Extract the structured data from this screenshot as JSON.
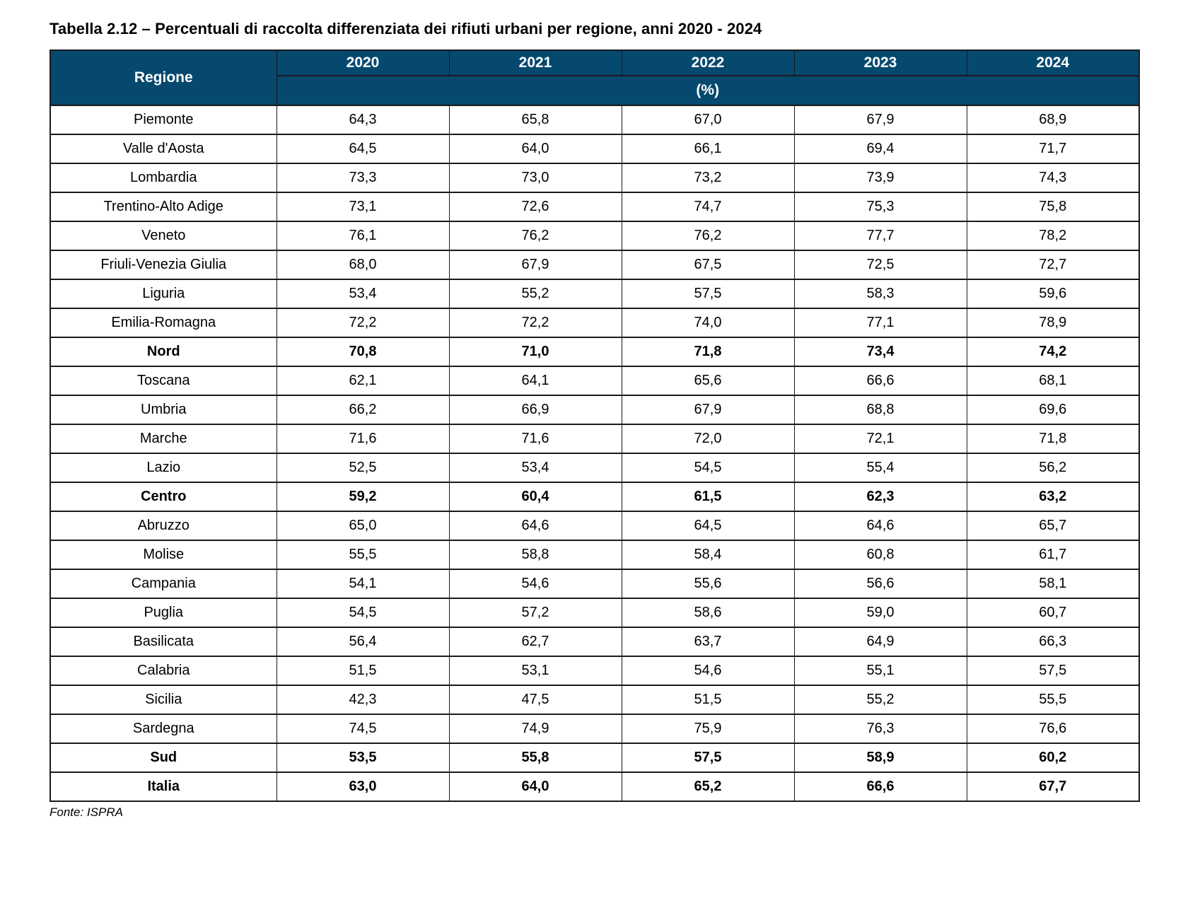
{
  "title": "Tabella 2.12 – Percentuali di raccolta differenziata dei rifiuti urbani per regione, anni 2020 - 2024",
  "source": "Fonte: ISPRA",
  "colors": {
    "header_background": "#05496F",
    "header_text": "#ffffff",
    "border": "#1a1a1a",
    "body_text": "#000000"
  },
  "table": {
    "region_header": "Regione",
    "year_headers": [
      "2020",
      "2021",
      "2022",
      "2023",
      "2024"
    ],
    "unit_header": "(%)",
    "rows": [
      {
        "region": "Piemonte",
        "bold": false,
        "values": [
          "64,3",
          "65,8",
          "67,0",
          "67,9",
          "68,9"
        ]
      },
      {
        "region": "Valle d'Aosta",
        "bold": false,
        "values": [
          "64,5",
          "64,0",
          "66,1",
          "69,4",
          "71,7"
        ]
      },
      {
        "region": "Lombardia",
        "bold": false,
        "values": [
          "73,3",
          "73,0",
          "73,2",
          "73,9",
          "74,3"
        ]
      },
      {
        "region": "Trentino-Alto Adige",
        "bold": false,
        "values": [
          "73,1",
          "72,6",
          "74,7",
          "75,3",
          "75,8"
        ]
      },
      {
        "region": "Veneto",
        "bold": false,
        "values": [
          "76,1",
          "76,2",
          "76,2",
          "77,7",
          "78,2"
        ]
      },
      {
        "region": "Friuli-Venezia Giulia",
        "bold": false,
        "values": [
          "68,0",
          "67,9",
          "67,5",
          "72,5",
          "72,7"
        ]
      },
      {
        "region": "Liguria",
        "bold": false,
        "values": [
          "53,4",
          "55,2",
          "57,5",
          "58,3",
          "59,6"
        ]
      },
      {
        "region": "Emilia-Romagna",
        "bold": false,
        "values": [
          "72,2",
          "72,2",
          "74,0",
          "77,1",
          "78,9"
        ]
      },
      {
        "region": "Nord",
        "bold": true,
        "values": [
          "70,8",
          "71,0",
          "71,8",
          "73,4",
          "74,2"
        ]
      },
      {
        "region": "Toscana",
        "bold": false,
        "values": [
          "62,1",
          "64,1",
          "65,6",
          "66,6",
          "68,1"
        ]
      },
      {
        "region": "Umbria",
        "bold": false,
        "values": [
          "66,2",
          "66,9",
          "67,9",
          "68,8",
          "69,6"
        ]
      },
      {
        "region": "Marche",
        "bold": false,
        "values": [
          "71,6",
          "71,6",
          "72,0",
          "72,1",
          "71,8"
        ]
      },
      {
        "region": "Lazio",
        "bold": false,
        "values": [
          "52,5",
          "53,4",
          "54,5",
          "55,4",
          "56,2"
        ]
      },
      {
        "region": "Centro",
        "bold": true,
        "values": [
          "59,2",
          "60,4",
          "61,5",
          "62,3",
          "63,2"
        ]
      },
      {
        "region": "Abruzzo",
        "bold": false,
        "values": [
          "65,0",
          "64,6",
          "64,5",
          "64,6",
          "65,7"
        ]
      },
      {
        "region": "Molise",
        "bold": false,
        "values": [
          "55,5",
          "58,8",
          "58,4",
          "60,8",
          "61,7"
        ]
      },
      {
        "region": "Campania",
        "bold": false,
        "values": [
          "54,1",
          "54,6",
          "55,6",
          "56,6",
          "58,1"
        ]
      },
      {
        "region": "Puglia",
        "bold": false,
        "values": [
          "54,5",
          "57,2",
          "58,6",
          "59,0",
          "60,7"
        ]
      },
      {
        "region": "Basilicata",
        "bold": false,
        "values": [
          "56,4",
          "62,7",
          "63,7",
          "64,9",
          "66,3"
        ]
      },
      {
        "region": "Calabria",
        "bold": false,
        "values": [
          "51,5",
          "53,1",
          "54,6",
          "55,1",
          "57,5"
        ]
      },
      {
        "region": "Sicilia",
        "bold": false,
        "values": [
          "42,3",
          "47,5",
          "51,5",
          "55,2",
          "55,5"
        ]
      },
      {
        "region": "Sardegna",
        "bold": false,
        "values": [
          "74,5",
          "74,9",
          "75,9",
          "76,3",
          "76,6"
        ]
      },
      {
        "region": "Sud",
        "bold": true,
        "values": [
          "53,5",
          "55,8",
          "57,5",
          "58,9",
          "60,2"
        ]
      },
      {
        "region": "Italia",
        "bold": true,
        "values": [
          "63,0",
          "64,0",
          "65,2",
          "66,6",
          "67,7"
        ]
      }
    ]
  }
}
